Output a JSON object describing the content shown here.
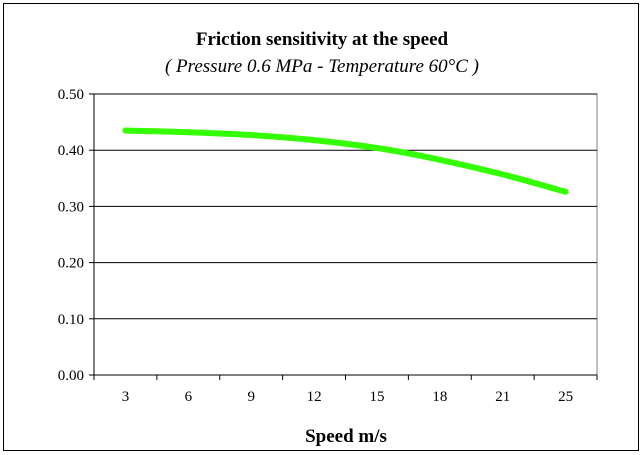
{
  "chart_data": {
    "type": "line",
    "title": "Friction sensitivity at the speed",
    "subtitle": "( Pressure 0.6 MPa - Temperature 60°C )",
    "xlabel": "Speed m/s",
    "ylabel": "",
    "categories": [
      "3",
      "6",
      "9",
      "12",
      "15",
      "18",
      "21",
      "25"
    ],
    "yticks": [
      "0.00",
      "0.10",
      "0.20",
      "0.30",
      "0.40",
      "0.50"
    ],
    "ylim": [
      0,
      0.5
    ],
    "grid": true,
    "legend": "none",
    "series": [
      {
        "name": "",
        "color": "#33ff00",
        "values": [
          0.435,
          0.432,
          0.427,
          0.418,
          0.404,
          0.383,
          0.357,
          0.326
        ]
      }
    ]
  }
}
